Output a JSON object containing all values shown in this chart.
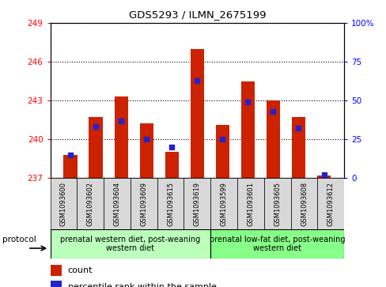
{
  "title": "GDS5293 / ILMN_2675199",
  "samples": [
    "GSM1093600",
    "GSM1093602",
    "GSM1093604",
    "GSM1093609",
    "GSM1093615",
    "GSM1093619",
    "GSM1093599",
    "GSM1093601",
    "GSM1093605",
    "GSM1093608",
    "GSM1093612"
  ],
  "counts": [
    238.8,
    241.7,
    243.3,
    241.2,
    239.0,
    247.0,
    241.1,
    244.5,
    243.0,
    241.7,
    237.2
  ],
  "percentiles": [
    15,
    33,
    37,
    25,
    20,
    63,
    25,
    49,
    43,
    32,
    2
  ],
  "ylim_left": [
    237,
    249
  ],
  "ylim_right": [
    0,
    100
  ],
  "yticks_left": [
    237,
    240,
    243,
    246,
    249
  ],
  "yticks_right": [
    0,
    25,
    50,
    75,
    100
  ],
  "bar_color": "#cc2200",
  "percentile_color": "#2222cc",
  "group1_color": "#bbffbb",
  "group2_color": "#88ff88",
  "group1_label": "prenatal western diet, post-weaning\nwestern diet",
  "group2_label": "prenatal low-fat diet, post-weaning\nwestern diet",
  "group1_count": 6,
  "group2_count": 5,
  "legend_count_label": "count",
  "legend_percentile_label": "percentile rank within the sample",
  "protocol_label": "protocol",
  "bar_width": 0.55,
  "bg_color": "#d8d8d8"
}
